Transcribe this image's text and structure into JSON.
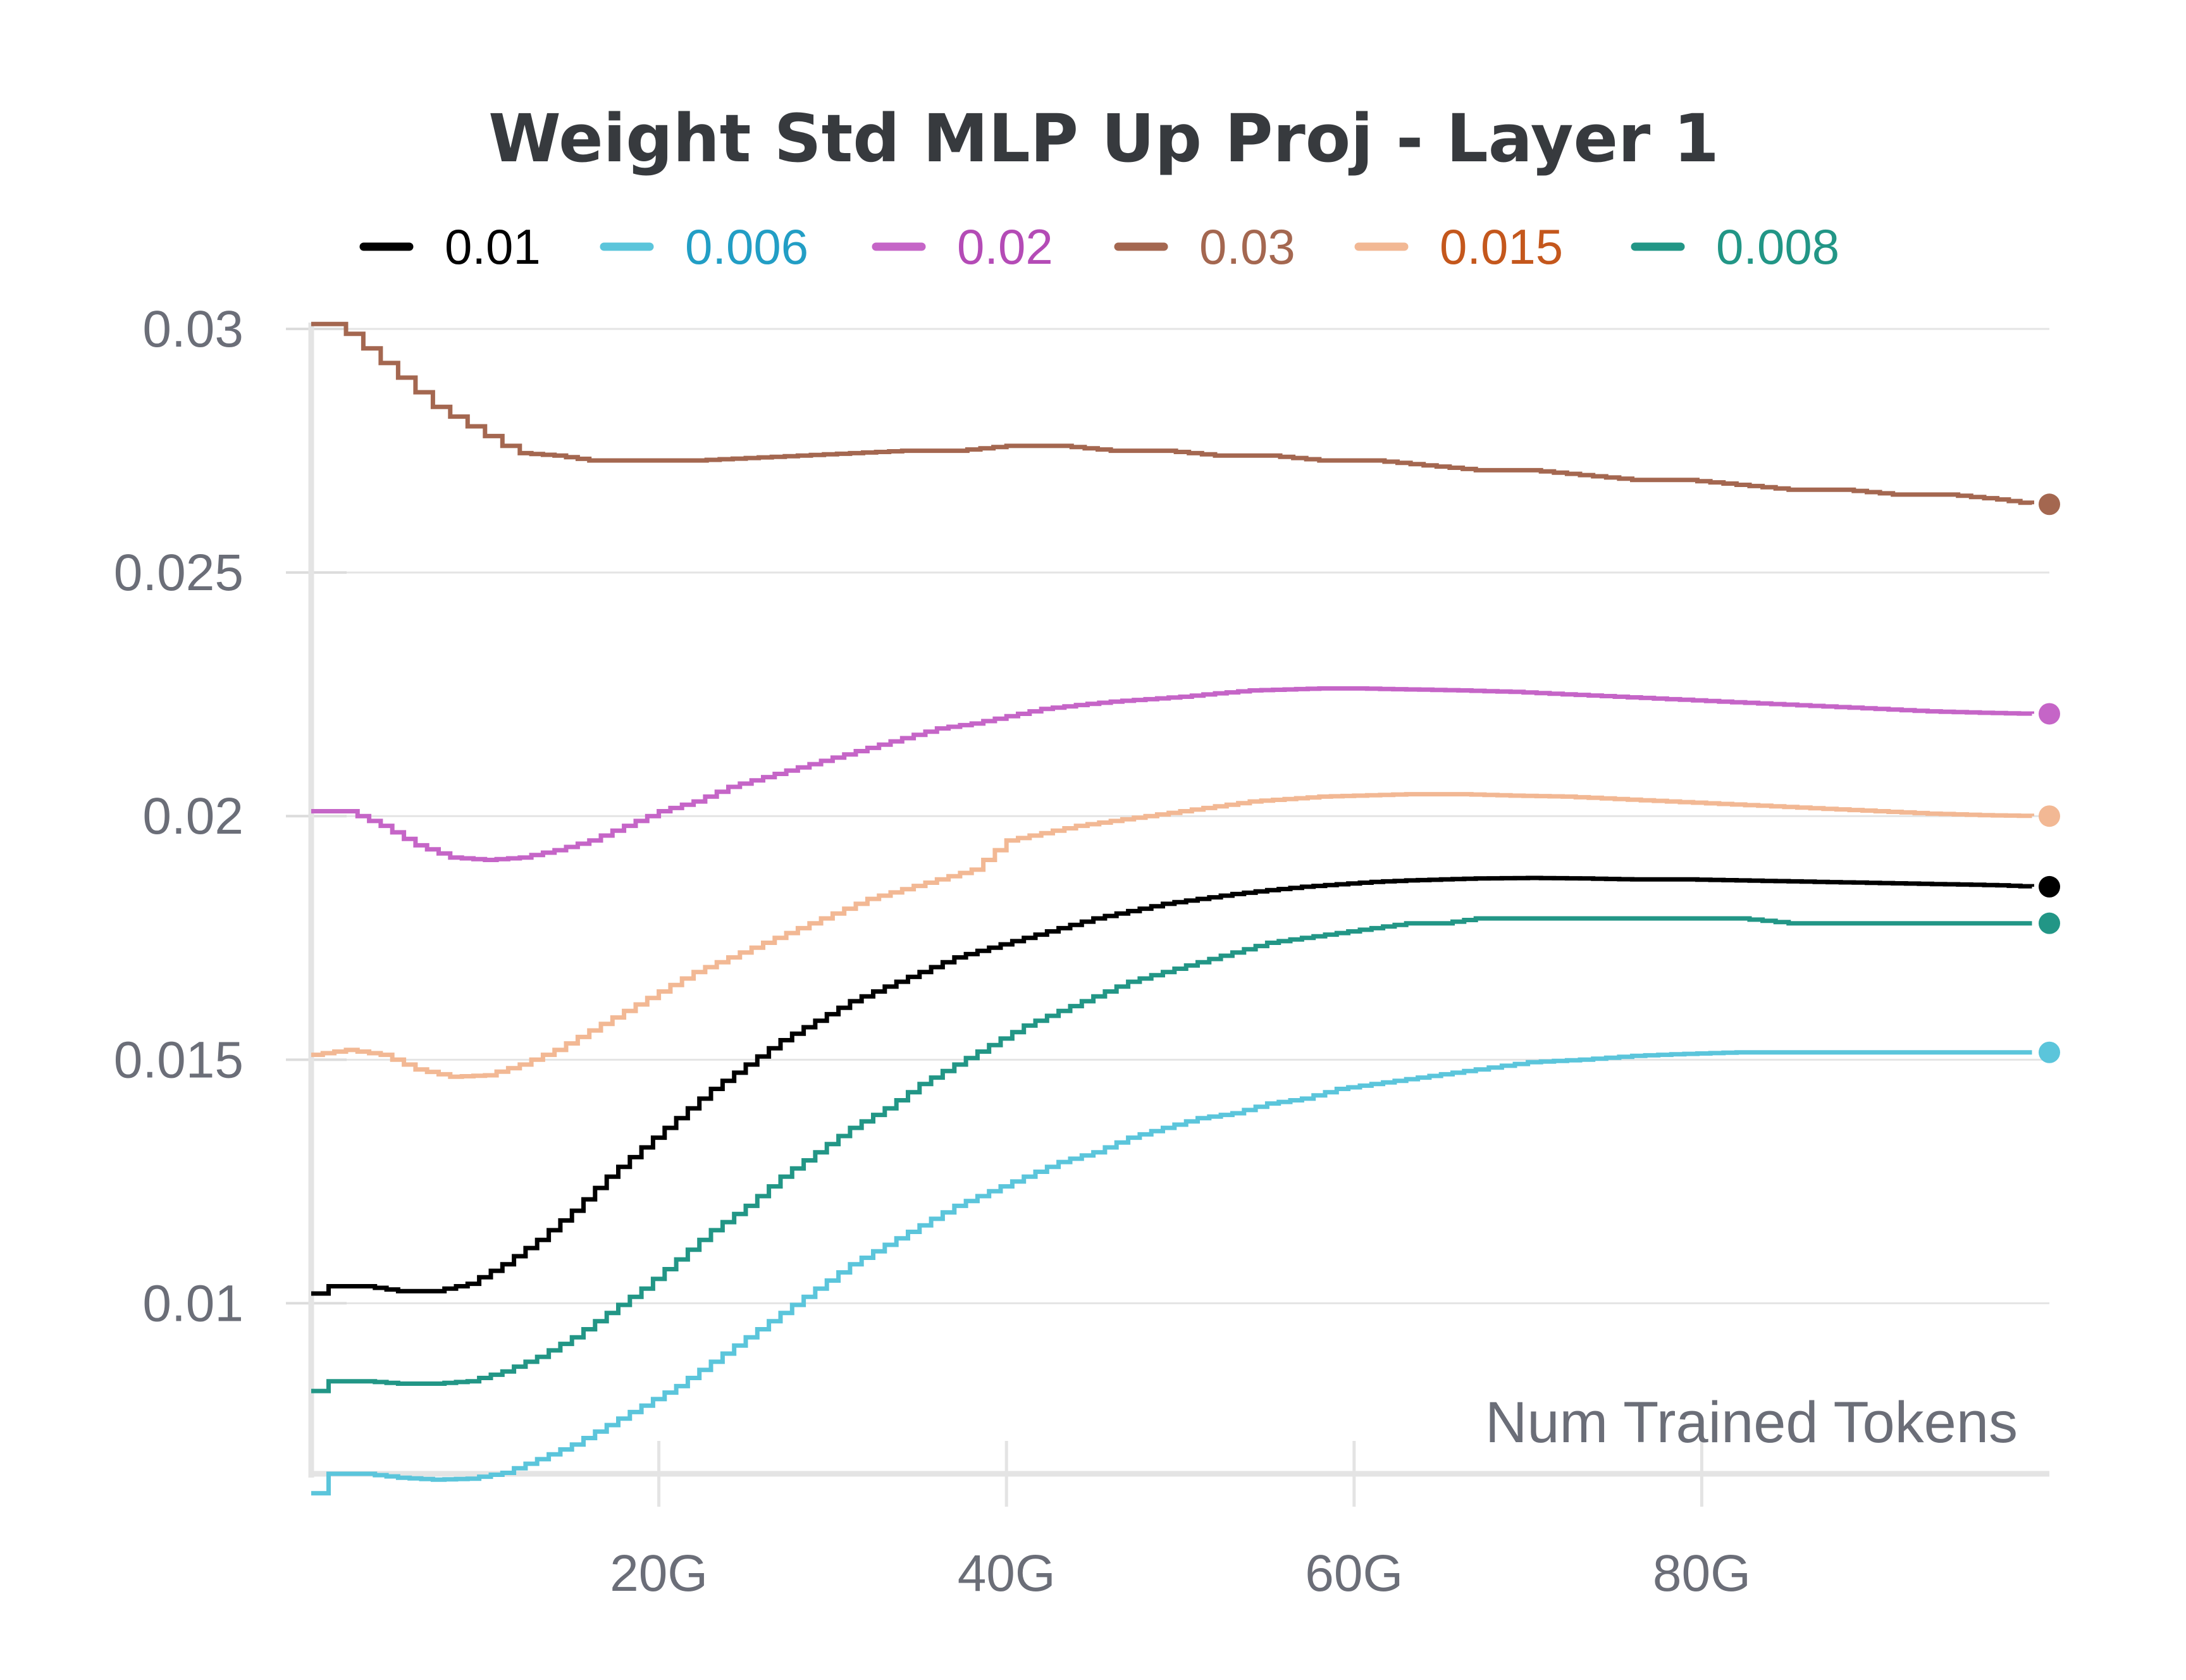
{
  "chart_data": {
    "type": "line",
    "title": "Weight Std MLP Up Proj - Layer 1",
    "xlabel": "Num Trained Tokens",
    "ylabel": "",
    "xlim": [
      0,
      100
    ],
    "ylim": [
      0.0065,
      0.03
    ],
    "x_unit": "G tokens",
    "x_ticks": [
      {
        "value": 20,
        "label": "20G"
      },
      {
        "value": 40,
        "label": "40G"
      },
      {
        "value": 60,
        "label": "60G"
      },
      {
        "value": 80,
        "label": "80G"
      }
    ],
    "y_ticks": [
      {
        "value": 0.01,
        "label": "0.01"
      },
      {
        "value": 0.015,
        "label": "0.015"
      },
      {
        "value": 0.02,
        "label": "0.02"
      },
      {
        "value": 0.025,
        "label": "0.025"
      },
      {
        "value": 0.03,
        "label": "0.03"
      }
    ],
    "grid": true,
    "legend_position": "top",
    "series": [
      {
        "name": "0.01",
        "color": "#000000",
        "label_color": "#000000",
        "points": [
          [
            0,
            0.0102
          ],
          [
            1,
            0.01035
          ],
          [
            3,
            0.01035
          ],
          [
            5,
            0.01025
          ],
          [
            7,
            0.01025
          ],
          [
            9,
            0.0104
          ],
          [
            11,
            0.0108
          ],
          [
            13,
            0.0113
          ],
          [
            15,
            0.0119
          ],
          [
            17,
            0.0126
          ],
          [
            19,
            0.0132
          ],
          [
            21,
            0.0138
          ],
          [
            23,
            0.0144
          ],
          [
            25,
            0.0149
          ],
          [
            27,
            0.0154
          ],
          [
            29,
            0.0158
          ],
          [
            31,
            0.0162
          ],
          [
            33,
            0.0165
          ],
          [
            35,
            0.0168
          ],
          [
            37,
            0.0171
          ],
          [
            39,
            0.0173
          ],
          [
            41,
            0.0175
          ],
          [
            43,
            0.0177
          ],
          [
            45,
            0.0179
          ],
          [
            47,
            0.01805
          ],
          [
            49,
            0.0182
          ],
          [
            51,
            0.0183
          ],
          [
            53,
            0.0184
          ],
          [
            55,
            0.01848
          ],
          [
            57,
            0.01855
          ],
          [
            59,
            0.0186
          ],
          [
            61,
            0.01865
          ],
          [
            63,
            0.01868
          ],
          [
            65,
            0.0187
          ],
          [
            67,
            0.01872
          ],
          [
            70,
            0.01873
          ],
          [
            73,
            0.01872
          ],
          [
            76,
            0.0187
          ],
          [
            79,
            0.0187
          ],
          [
            82,
            0.01868
          ],
          [
            85,
            0.01866
          ],
          [
            88,
            0.01864
          ],
          [
            91,
            0.01862
          ],
          [
            94,
            0.0186
          ],
          [
            97,
            0.01858
          ],
          [
            99,
            0.01855
          ]
        ]
      },
      {
        "name": "0.006",
        "color": "#5bc5db",
        "label_color": "#229ec5",
        "points": [
          [
            0,
            0.0061
          ],
          [
            1,
            0.0065
          ],
          [
            3,
            0.0065
          ],
          [
            5,
            0.00642
          ],
          [
            7,
            0.00638
          ],
          [
            9,
            0.0064
          ],
          [
            11,
            0.00652
          ],
          [
            13,
            0.0068
          ],
          [
            15,
            0.0071
          ],
          [
            17,
            0.0075
          ],
          [
            19,
            0.0079
          ],
          [
            21,
            0.0083
          ],
          [
            23,
            0.0088
          ],
          [
            25,
            0.0093
          ],
          [
            27,
            0.0098
          ],
          [
            29,
            0.0103
          ],
          [
            31,
            0.0108
          ],
          [
            33,
            0.0112
          ],
          [
            35,
            0.0116
          ],
          [
            37,
            0.012
          ],
          [
            39,
            0.0123
          ],
          [
            41,
            0.0126
          ],
          [
            43,
            0.0129
          ],
          [
            45,
            0.0131
          ],
          [
            47,
            0.0134
          ],
          [
            49,
            0.0136
          ],
          [
            51,
            0.0138
          ],
          [
            53,
            0.0139
          ],
          [
            55,
            0.0141
          ],
          [
            57,
            0.0142
          ],
          [
            59,
            0.0144
          ],
          [
            61,
            0.0145
          ],
          [
            63,
            0.0146
          ],
          [
            65,
            0.0147
          ],
          [
            67,
            0.0148
          ],
          [
            70,
            0.01495
          ],
          [
            73,
            0.015
          ],
          [
            76,
            0.01508
          ],
          [
            79,
            0.01512
          ],
          [
            82,
            0.01515
          ],
          [
            85,
            0.01515
          ],
          [
            88,
            0.01515
          ],
          [
            91,
            0.01515
          ],
          [
            94,
            0.01515
          ],
          [
            97,
            0.01515
          ],
          [
            99,
            0.01515
          ]
        ]
      },
      {
        "name": "0.02",
        "color": "#c565c7",
        "label_color": "#b44bb6",
        "points": [
          [
            0,
            0.0201
          ],
          [
            2,
            0.0201
          ],
          [
            4,
            0.0198
          ],
          [
            6,
            0.0194
          ],
          [
            8,
            0.01915
          ],
          [
            10,
            0.0191
          ],
          [
            12,
            0.01915
          ],
          [
            14,
            0.0193
          ],
          [
            16,
            0.0195
          ],
          [
            18,
            0.0198
          ],
          [
            20,
            0.0201
          ],
          [
            22,
            0.0203
          ],
          [
            24,
            0.0206
          ],
          [
            26,
            0.0208
          ],
          [
            28,
            0.021
          ],
          [
            30,
            0.0212
          ],
          [
            32,
            0.0214
          ],
          [
            34,
            0.0216
          ],
          [
            36,
            0.0218
          ],
          [
            38,
            0.0219
          ],
          [
            40,
            0.02205
          ],
          [
            42,
            0.0222
          ],
          [
            44,
            0.02228
          ],
          [
            46,
            0.02235
          ],
          [
            48,
            0.0224
          ],
          [
            50,
            0.02245
          ],
          [
            52,
            0.02252
          ],
          [
            54,
            0.02258
          ],
          [
            56,
            0.0226
          ],
          [
            58,
            0.02262
          ],
          [
            60,
            0.02262
          ],
          [
            63,
            0.0226
          ],
          [
            66,
            0.02258
          ],
          [
            69,
            0.02255
          ],
          [
            72,
            0.0225
          ],
          [
            75,
            0.02245
          ],
          [
            78,
            0.0224
          ],
          [
            81,
            0.02235
          ],
          [
            84,
            0.0223
          ],
          [
            87,
            0.02225
          ],
          [
            90,
            0.0222
          ],
          [
            93,
            0.02215
          ],
          [
            96,
            0.02212
          ],
          [
            99,
            0.0221
          ]
        ]
      },
      {
        "name": "0.03",
        "color": "#a46750",
        "label_color": "#a46750",
        "points": [
          [
            0,
            0.0301
          ],
          [
            1,
            0.0301
          ],
          [
            2,
            0.0299
          ],
          [
            3,
            0.0296
          ],
          [
            4,
            0.0293
          ],
          [
            5,
            0.029
          ],
          [
            6,
            0.0287
          ],
          [
            7,
            0.0284
          ],
          [
            8,
            0.0282
          ],
          [
            9,
            0.028
          ],
          [
            10,
            0.0278
          ],
          [
            11,
            0.0276
          ],
          [
            12,
            0.02745
          ],
          [
            14,
            0.0274
          ],
          [
            16,
            0.0273
          ],
          [
            19,
            0.0273
          ],
          [
            22,
            0.0273
          ],
          [
            25,
            0.02735
          ],
          [
            28,
            0.0274
          ],
          [
            31,
            0.02745
          ],
          [
            34,
            0.0275
          ],
          [
            37,
            0.0275
          ],
          [
            40,
            0.0276
          ],
          [
            43,
            0.0276
          ],
          [
            46,
            0.0275
          ],
          [
            49,
            0.0275
          ],
          [
            52,
            0.0274
          ],
          [
            55,
            0.0274
          ],
          [
            58,
            0.0273
          ],
          [
            61,
            0.0273
          ],
          [
            64,
            0.0272
          ],
          [
            67,
            0.0271
          ],
          [
            70,
            0.0271
          ],
          [
            73,
            0.027
          ],
          [
            76,
            0.0269
          ],
          [
            79,
            0.0269
          ],
          [
            82,
            0.0268
          ],
          [
            85,
            0.0267
          ],
          [
            88,
            0.0267
          ],
          [
            91,
            0.0266
          ],
          [
            94,
            0.0266
          ],
          [
            97,
            0.0265
          ],
          [
            99,
            0.0264
          ]
        ]
      },
      {
        "name": "0.015",
        "color": "#f2b894",
        "label_color": "#c4571c",
        "points": [
          [
            0,
            0.0151
          ],
          [
            2,
            0.0152
          ],
          [
            4,
            0.0151
          ],
          [
            6,
            0.0148
          ],
          [
            8,
            0.01465
          ],
          [
            10,
            0.01468
          ],
          [
            12,
            0.0149
          ],
          [
            14,
            0.0152
          ],
          [
            16,
            0.0156
          ],
          [
            18,
            0.016
          ],
          [
            20,
            0.0164
          ],
          [
            22,
            0.0168
          ],
          [
            24,
            0.0171
          ],
          [
            26,
            0.0174
          ],
          [
            28,
            0.0177
          ],
          [
            30,
            0.018
          ],
          [
            32,
            0.0183
          ],
          [
            34,
            0.0185
          ],
          [
            36,
            0.0187
          ],
          [
            38,
            0.0189
          ],
          [
            40,
            0.0195
          ],
          [
            42,
            0.01965
          ],
          [
            44,
            0.0198
          ],
          [
            46,
            0.0199
          ],
          [
            48,
            0.02
          ],
          [
            50,
            0.0201
          ],
          [
            52,
            0.0202
          ],
          [
            54,
            0.0203
          ],
          [
            56,
            0.02035
          ],
          [
            58,
            0.0204
          ],
          [
            60,
            0.02042
          ],
          [
            63,
            0.02045
          ],
          [
            66,
            0.02045
          ],
          [
            69,
            0.02042
          ],
          [
            72,
            0.0204
          ],
          [
            75,
            0.02035
          ],
          [
            78,
            0.0203
          ],
          [
            81,
            0.02025
          ],
          [
            84,
            0.0202
          ],
          [
            87,
            0.02015
          ],
          [
            90,
            0.0201
          ],
          [
            93,
            0.02005
          ],
          [
            96,
            0.02002
          ],
          [
            99,
            0.02
          ]
        ]
      },
      {
        "name": "0.008",
        "color": "#229686",
        "label_color": "#229686",
        "points": [
          [
            0,
            0.0082
          ],
          [
            1,
            0.0084
          ],
          [
            3,
            0.0084
          ],
          [
            5,
            0.00835
          ],
          [
            7,
            0.00835
          ],
          [
            9,
            0.0084
          ],
          [
            11,
            0.0086
          ],
          [
            13,
            0.0089
          ],
          [
            15,
            0.0093
          ],
          [
            17,
            0.0098
          ],
          [
            19,
            0.0103
          ],
          [
            21,
            0.0109
          ],
          [
            23,
            0.0115
          ],
          [
            25,
            0.012
          ],
          [
            27,
            0.0126
          ],
          [
            29,
            0.0131
          ],
          [
            31,
            0.0136
          ],
          [
            33,
            0.014
          ],
          [
            35,
            0.0145
          ],
          [
            37,
            0.0149
          ],
          [
            39,
            0.0153
          ],
          [
            41,
            0.0157
          ],
          [
            43,
            0.016
          ],
          [
            45,
            0.0163
          ],
          [
            47,
            0.0166
          ],
          [
            49,
            0.0168
          ],
          [
            51,
            0.017
          ],
          [
            53,
            0.0172
          ],
          [
            55,
            0.0174
          ],
          [
            57,
            0.0175
          ],
          [
            59,
            0.0176
          ],
          [
            61,
            0.0177
          ],
          [
            63,
            0.0178
          ],
          [
            65,
            0.0178
          ],
          [
            67,
            0.0179
          ],
          [
            70,
            0.0179
          ],
          [
            73,
            0.0179
          ],
          [
            76,
            0.0179
          ],
          [
            79,
            0.0179
          ],
          [
            82,
            0.0179
          ],
          [
            85,
            0.0178
          ],
          [
            88,
            0.0178
          ],
          [
            91,
            0.0178
          ],
          [
            94,
            0.0178
          ],
          [
            97,
            0.0178
          ],
          [
            99,
            0.0178
          ]
        ]
      }
    ]
  }
}
